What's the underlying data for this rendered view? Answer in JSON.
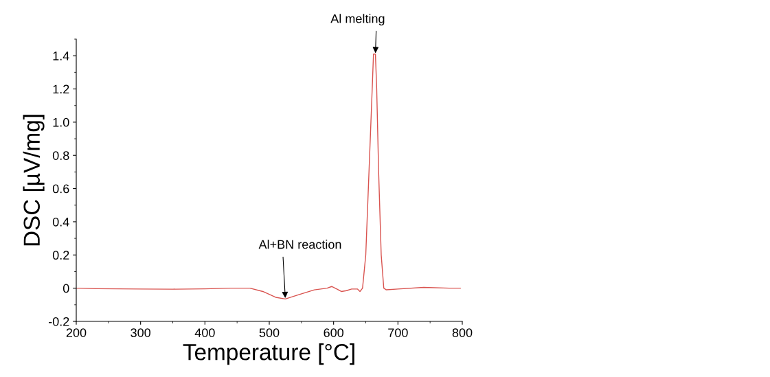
{
  "chart_data": {
    "type": "line",
    "xlabel": "Temperature [°C]",
    "ylabel": "DSC [µV/mg]",
    "xlim": [
      200,
      800
    ],
    "xticks": [
      200,
      300,
      400,
      500,
      600,
      700,
      800
    ],
    "ylim": [
      -0.2,
      1.5
    ],
    "yticks": [
      {
        "value": -0.2,
        "label": "-0.2"
      },
      {
        "value": 0,
        "label": "0"
      },
      {
        "value": 0.2,
        "label": "0.2"
      },
      {
        "value": 0.4,
        "label": "0.4"
      },
      {
        "value": 0.6,
        "label": "0.6"
      },
      {
        "value": 0.8,
        "label": "0.8"
      },
      {
        "value": 1.0,
        "label": "1.0"
      },
      {
        "value": 1.2,
        "label": "1.2"
      },
      {
        "value": 1.4,
        "label": "1.4"
      }
    ],
    "grid": false,
    "legend": false,
    "marker": "none",
    "line_style": "solid",
    "series": [
      {
        "color": "#d9534f",
        "x": [
          200,
          230,
          300,
          350,
          400,
          440,
          470,
          490,
          510,
          525,
          545,
          570,
          590,
          597,
          605,
          612,
          620,
          628,
          637,
          641,
          645,
          650,
          655,
          660,
          662,
          665,
          667,
          670,
          674,
          678,
          682,
          700,
          740,
          780,
          797
        ],
        "values": [
          0.0,
          -0.003,
          -0.005,
          -0.006,
          -0.004,
          0.0,
          0.0,
          -0.02,
          -0.055,
          -0.065,
          -0.04,
          -0.01,
          0.0,
          0.01,
          -0.005,
          -0.02,
          -0.015,
          -0.005,
          -0.005,
          -0.02,
          0.0,
          0.2,
          0.7,
          1.2,
          1.41,
          1.41,
          1.2,
          0.7,
          0.2,
          0.0,
          -0.01,
          -0.005,
          0.005,
          0.0,
          0.0
        ]
      }
    ],
    "annotations": [
      {
        "text": "Al+BN reaction",
        "x": 525,
        "y": -0.065
      },
      {
        "text": "Al melting",
        "x": 665,
        "y": 1.41
      }
    ]
  }
}
